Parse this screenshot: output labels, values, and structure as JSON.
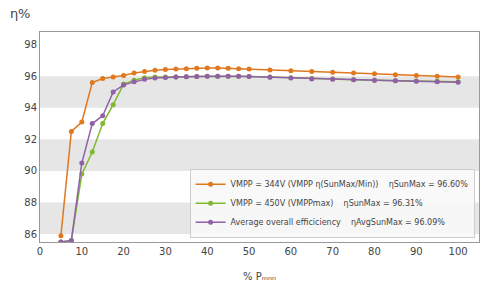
{
  "chart_data": {
    "type": "line",
    "title": "η%",
    "xlabel": "% Pₘₙₙ",
    "x": [
      5,
      7.5,
      10,
      12.5,
      15,
      17.5,
      20,
      22.5,
      25,
      27.5,
      30,
      32.5,
      35,
      37.5,
      40,
      42.5,
      45,
      47.5,
      50,
      55,
      60,
      65,
      70,
      75,
      80,
      85,
      90,
      95,
      100
    ],
    "series": [
      {
        "name": "VMPP = 344V (VMPP η(SunMax/Min))    ηSunMax = 96.60%",
        "color": "#e07820",
        "marker": "circle",
        "values": [
          85.9,
          92.5,
          93.1,
          95.6,
          95.85,
          95.95,
          96.05,
          96.2,
          96.3,
          96.38,
          96.42,
          96.45,
          96.48,
          96.5,
          96.52,
          96.52,
          96.5,
          96.48,
          96.45,
          96.4,
          96.35,
          96.3,
          96.25,
          96.2,
          96.15,
          96.1,
          96.05,
          96.0,
          95.95
        ]
      },
      {
        "name": "VMPP = 450V (VMPPmax)    ηSunMax = 96.31%",
        "color": "#80b830",
        "marker": "circle",
        "values": [
          85.5,
          85.6,
          89.8,
          91.2,
          93.0,
          94.2,
          95.5,
          95.75,
          95.9,
          95.95,
          95.95,
          95.95,
          95.97,
          95.98,
          96.0,
          96.0,
          96.0,
          96.0,
          95.98,
          95.95,
          95.9,
          95.85,
          95.82,
          95.78,
          95.75,
          95.72,
          95.7,
          95.68,
          95.65
        ]
      },
      {
        "name": "Average overall efficiciency    ηAvgSunMax = 96.09%",
        "color": "#9060a8",
        "marker": "circle",
        "values": [
          85.5,
          85.6,
          90.5,
          93.0,
          93.5,
          95.0,
          95.45,
          95.65,
          95.8,
          95.88,
          95.92,
          95.95,
          95.97,
          95.98,
          96.0,
          96.0,
          96.0,
          96.0,
          95.98,
          95.93,
          95.88,
          95.83,
          95.8,
          95.77,
          95.74,
          95.71,
          95.68,
          95.65,
          95.62
        ]
      }
    ],
    "xlim": [
      0,
      105
    ],
    "ylim": [
      85.5,
      98.8
    ],
    "xticks": [
      0,
      10,
      20,
      30,
      40,
      50,
      60,
      70,
      80,
      90,
      100
    ],
    "yticks": [
      86,
      88,
      90,
      92,
      94,
      96,
      98
    ],
    "grid": false,
    "legend": "lower right"
  }
}
